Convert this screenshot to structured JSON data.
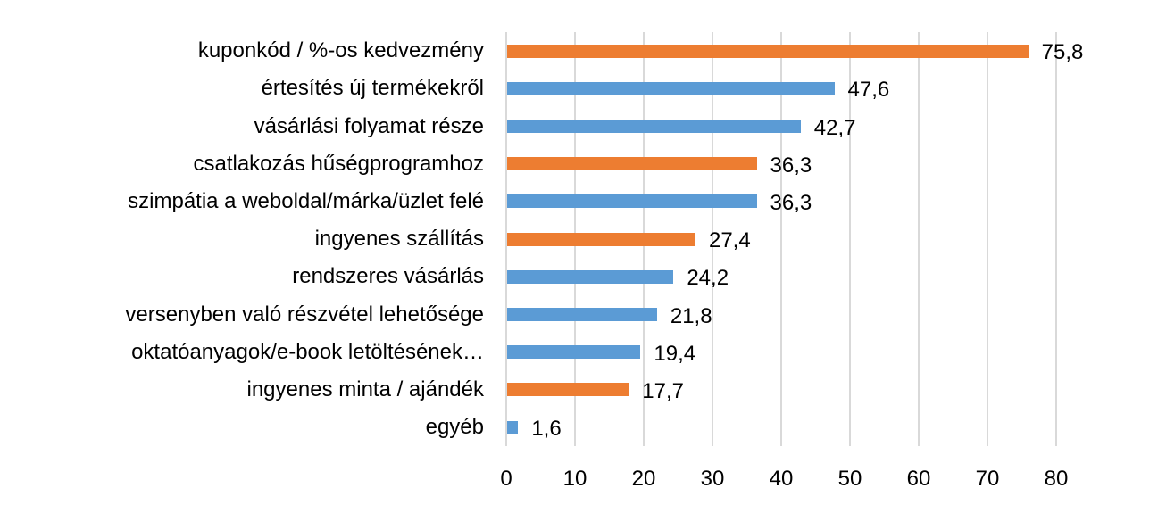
{
  "colors": {
    "orange": "#ed7d31",
    "blue": "#5b9bd5",
    "grid": "#d9d9d9"
  },
  "chart_data": {
    "type": "bar",
    "orientation": "horizontal",
    "title": "",
    "xlabel": "",
    "ylabel": "",
    "xlim": [
      0,
      80
    ],
    "x_ticks": [
      "0",
      "10",
      "20",
      "30",
      "40",
      "50",
      "60",
      "70",
      "80"
    ],
    "grid": true,
    "legend": null,
    "categories": [
      "kuponkód / %-os kedvezmény",
      "értesítés új termékekről",
      "vásárlási folyamat része",
      "csatlakozás hűségprogramhoz",
      "szimpátia a weboldal/márka/üzlet felé",
      "ingyenes szállítás",
      "rendszeres vásárlás",
      "versenyben való részvétel lehetősége",
      "oktatóanyagok/e-book letöltésének…",
      "ingyenes minta / ajándék",
      "egyéb"
    ],
    "values": [
      75.8,
      47.6,
      42.7,
      36.3,
      36.3,
      27.4,
      24.2,
      21.8,
      19.4,
      17.7,
      1.6
    ],
    "value_labels": [
      "75,8",
      "47,6",
      "42,7",
      "36,3",
      "36,3",
      "27,4",
      "24,2",
      "21,8",
      "19,4",
      "17,7",
      "1,6"
    ],
    "bar_colors": [
      "orange",
      "blue",
      "blue",
      "orange",
      "blue",
      "orange",
      "blue",
      "blue",
      "blue",
      "orange",
      "blue"
    ]
  }
}
